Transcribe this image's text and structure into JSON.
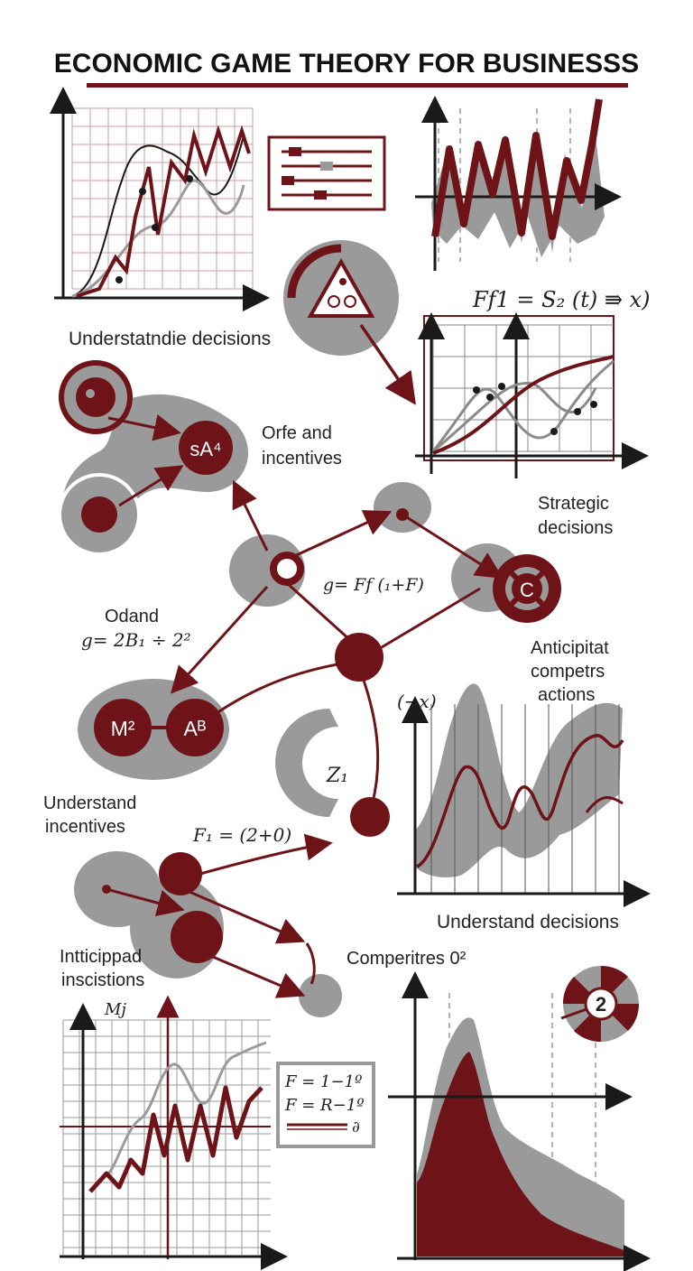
{
  "title": "ECONOMIC GAME THEORY FOR BUSINESSS",
  "colors": {
    "maroon": "#6e1418",
    "gray": "#9a9a9a",
    "lightgray": "#bdbdbd",
    "dark": "#1a1a1a"
  },
  "labels": {
    "understatndie": "Understatndie decisions",
    "orfe": "Orfe and",
    "incentives1": "incentives",
    "strategic1": "Strategic",
    "strategic2": "decisions",
    "odand": "Odand",
    "anticipat1": "Anticipitat",
    "anticipat2": "competrs",
    "anticipat3": "actions",
    "understand_incentives1": "Understand",
    "understand_incentives2": "incentives",
    "understand_decisions": "Understand decisions",
    "intticippad1": "Intticippad",
    "intticippad2": "inscistions",
    "comperitres": "Comperitres 0²"
  },
  "formulas": {
    "f_top": "F𝑓1 = S₂ (t) ⇛ x)",
    "g_mid": "g= F𝑓 (₁+F)",
    "g_left": "g= 2B₁ ÷ 2²",
    "f_mid": "F₁ = (2+0)",
    "neg_x": "(−x)",
    "m_j": "M𝑗",
    "box_f1": "F = 1−1º",
    "box_f2": "F = R−1º",
    "box_f3": "∂"
  },
  "nodes": {
    "sa": "sA⁴",
    "m2": "M²",
    "ab": "Aᴮ",
    "c": "C",
    "two": "2",
    "z": "Z₁"
  }
}
